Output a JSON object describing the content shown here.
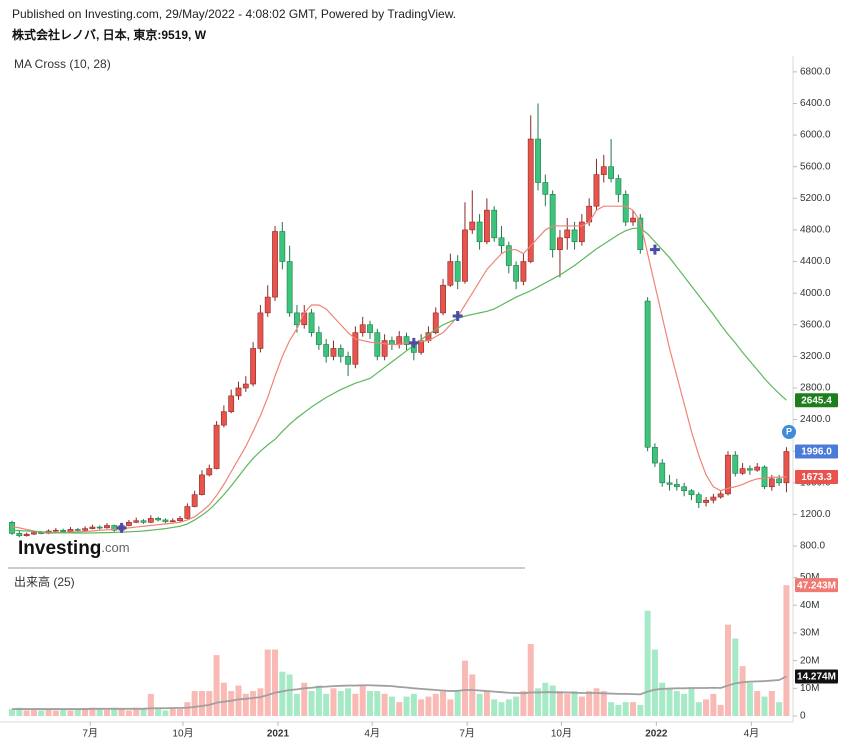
{
  "header": {
    "published": "Published on Investing.com, 29/May/2022 - 4:08:02 GMT, Powered by TradingView.",
    "symbol": "株式会社レノバ, 日本, 東京:9519, W"
  },
  "logo": {
    "name": "Investing",
    "suffix": ".com"
  },
  "badge": "P",
  "chart_data": {
    "type": "candlestick",
    "indicator": "MA Cross (10, 28)",
    "up_color": "#e8544d",
    "down_color": "#3cc47c",
    "xlim": [
      -0.55,
      106.9
    ],
    "xticks": [
      {
        "value": 10.7,
        "label": "7月"
      },
      {
        "value": 23.4,
        "label": "10月"
      },
      {
        "value": 36.4,
        "label": "2021"
      },
      {
        "value": 49.3,
        "label": "4月"
      },
      {
        "value": 62.3,
        "label": "7月"
      },
      {
        "value": 75.2,
        "label": "10月"
      },
      {
        "value": 88.2,
        "label": "2022"
      },
      {
        "value": 101.2,
        "label": "4月"
      }
    ],
    "ylim": [
      560,
      6950
    ],
    "yticks": [
      {
        "value": 800,
        "label": "800.0"
      },
      {
        "value": 1200,
        "label": "1200.0"
      },
      {
        "value": 1600,
        "label": "1600.0"
      },
      {
        "value": 2000,
        "label": "2000.0"
      },
      {
        "value": 2400,
        "label": "2400.0"
      },
      {
        "value": 2800,
        "label": "2800.0"
      },
      {
        "value": 3200,
        "label": "3200.0"
      },
      {
        "value": 3600,
        "label": "3600.0"
      },
      {
        "value": 4000,
        "label": "4000.0"
      },
      {
        "value": 4400,
        "label": "4400.0"
      },
      {
        "value": 4800,
        "label": "4800.0"
      },
      {
        "value": 5200,
        "label": "5200.0"
      },
      {
        "value": 5600,
        "label": "5600.0"
      },
      {
        "value": 6000,
        "label": "6000.0"
      },
      {
        "value": 6400,
        "label": "6400.0"
      },
      {
        "value": 6800,
        "label": "6800.0"
      }
    ],
    "ohlc": [
      [
        1100,
        1120,
        940,
        960
      ],
      [
        960,
        990,
        910,
        930
      ],
      [
        930,
        970,
        920,
        950
      ],
      [
        950,
        990,
        940,
        970
      ],
      [
        970,
        990,
        950,
        960
      ],
      [
        960,
        1010,
        950,
        990
      ],
      [
        990,
        1030,
        980,
        1000
      ],
      [
        1000,
        1020,
        960,
        980
      ],
      [
        980,
        1040,
        970,
        1010
      ],
      [
        1010,
        1030,
        980,
        1000
      ],
      [
        1000,
        1050,
        990,
        1020
      ],
      [
        1020,
        1070,
        1010,
        1040
      ],
      [
        1040,
        1060,
        1010,
        1030
      ],
      [
        1030,
        1090,
        1020,
        1060
      ],
      [
        1060,
        1070,
        980,
        1000
      ],
      [
        1000,
        1080,
        990,
        1060
      ],
      [
        1060,
        1130,
        1050,
        1100
      ],
      [
        1100,
        1160,
        1090,
        1120
      ],
      [
        1120,
        1140,
        1080,
        1100
      ],
      [
        1100,
        1190,
        1090,
        1150
      ],
      [
        1150,
        1170,
        1110,
        1130
      ],
      [
        1130,
        1150,
        1090,
        1110
      ],
      [
        1110,
        1150,
        1100,
        1120
      ],
      [
        1120,
        1180,
        1110,
        1150
      ],
      [
        1150,
        1340,
        1140,
        1300
      ],
      [
        1300,
        1500,
        1290,
        1450
      ],
      [
        1450,
        1760,
        1440,
        1700
      ],
      [
        1700,
        1830,
        1680,
        1780
      ],
      [
        1780,
        2380,
        1770,
        2330
      ],
      [
        2330,
        2580,
        2300,
        2500
      ],
      [
        2500,
        2780,
        2480,
        2700
      ],
      [
        2700,
        2880,
        2650,
        2800
      ],
      [
        2800,
        2950,
        2750,
        2850
      ],
      [
        2850,
        3380,
        2820,
        3300
      ],
      [
        3300,
        3850,
        3250,
        3750
      ],
      [
        3750,
        4100,
        3700,
        3950
      ],
      [
        3950,
        4850,
        3900,
        4780
      ],
      [
        4780,
        4900,
        4300,
        4400
      ],
      [
        4400,
        4600,
        3700,
        3750
      ],
      [
        3750,
        3850,
        3500,
        3600
      ],
      [
        3600,
        3850,
        3550,
        3750
      ],
      [
        3750,
        3800,
        3450,
        3500
      ],
      [
        3500,
        3580,
        3280,
        3350
      ],
      [
        3350,
        3420,
        3120,
        3200
      ],
      [
        3200,
        3400,
        3150,
        3300
      ],
      [
        3300,
        3350,
        3120,
        3200
      ],
      [
        3200,
        3260,
        2950,
        3100
      ],
      [
        3100,
        3580,
        3050,
        3500
      ],
      [
        3500,
        3700,
        3450,
        3600
      ],
      [
        3600,
        3650,
        3420,
        3500
      ],
      [
        3500,
        3550,
        3150,
        3200
      ],
      [
        3200,
        3480,
        3150,
        3400
      ],
      [
        3400,
        3450,
        3280,
        3350
      ],
      [
        3350,
        3520,
        3300,
        3450
      ],
      [
        3450,
        3500,
        3280,
        3350
      ],
      [
        3350,
        3420,
        3150,
        3250
      ],
      [
        3250,
        3480,
        3220,
        3400
      ],
      [
        3400,
        3580,
        3370,
        3500
      ],
      [
        3500,
        3820,
        3480,
        3750
      ],
      [
        3750,
        4180,
        3720,
        4100
      ],
      [
        4100,
        4500,
        4080,
        4400
      ],
      [
        4400,
        4480,
        4050,
        4150
      ],
      [
        4150,
        5150,
        4120,
        4800
      ],
      [
        4800,
        5300,
        4750,
        4900
      ],
      [
        4900,
        5000,
        4550,
        4650
      ],
      [
        4650,
        5200,
        4620,
        5050
      ],
      [
        5050,
        5100,
        4650,
        4700
      ],
      [
        4700,
        4850,
        4500,
        4600
      ],
      [
        4600,
        4650,
        4250,
        4350
      ],
      [
        4350,
        4400,
        4050,
        4150
      ],
      [
        4150,
        4500,
        4100,
        4400
      ],
      [
        4400,
        6250,
        4380,
        5950
      ],
      [
        5950,
        6400,
        5300,
        5400
      ],
      [
        5400,
        5500,
        5100,
        5250
      ],
      [
        5250,
        5300,
        4450,
        4550
      ],
      [
        4550,
        4800,
        4200,
        4700
      ],
      [
        4700,
        4950,
        4550,
        4800
      ],
      [
        4800,
        4900,
        4550,
        4650
      ],
      [
        4650,
        5000,
        4600,
        4900
      ],
      [
        4900,
        5200,
        4850,
        5100
      ],
      [
        5100,
        5700,
        5050,
        5500
      ],
      [
        5500,
        5750,
        5400,
        5600
      ],
      [
        5600,
        5950,
        5400,
        5450
      ],
      [
        5450,
        5500,
        5150,
        5250
      ],
      [
        5250,
        5300,
        4850,
        4900
      ],
      [
        4900,
        5050,
        4850,
        4950
      ],
      [
        4950,
        5000,
        4500,
        4550
      ],
      [
        3900,
        3950,
        2000,
        2050
      ],
      [
        2050,
        2100,
        1800,
        1850
      ],
      [
        1850,
        1900,
        1550,
        1600
      ],
      [
        1600,
        1700,
        1500,
        1580
      ],
      [
        1580,
        1650,
        1500,
        1550
      ],
      [
        1550,
        1600,
        1430,
        1500
      ],
      [
        1500,
        1520,
        1380,
        1450
      ],
      [
        1450,
        1480,
        1280,
        1350
      ],
      [
        1350,
        1420,
        1300,
        1380
      ],
      [
        1380,
        1460,
        1340,
        1420
      ],
      [
        1420,
        1500,
        1400,
        1460
      ],
      [
        1460,
        2000,
        1440,
        1950
      ],
      [
        1950,
        2000,
        1680,
        1720
      ],
      [
        1720,
        1850,
        1700,
        1780
      ],
      [
        1780,
        1820,
        1700,
        1760
      ],
      [
        1760,
        1850,
        1740,
        1800
      ],
      [
        1800,
        1820,
        1520,
        1550
      ],
      [
        1550,
        1700,
        1500,
        1650
      ],
      [
        1650,
        1700,
        1560,
        1600
      ],
      [
        1600,
        2050,
        1480,
        1996
      ]
    ],
    "ma_fast": {
      "color": "#f08378",
      "values": [
        1050,
        1030,
        1010,
        990,
        975,
        965,
        965,
        970,
        975,
        980,
        985,
        990,
        1000,
        1005,
        1010,
        1020,
        1030,
        1040,
        1050,
        1060,
        1070,
        1080,
        1090,
        1100,
        1130,
        1170,
        1240,
        1320,
        1440,
        1580,
        1740,
        1900,
        2060,
        2250,
        2450,
        2680,
        2950,
        3200,
        3400,
        3550,
        3750,
        3850,
        3850,
        3800,
        3700,
        3600,
        3500,
        3420,
        3400,
        3380,
        3370,
        3360,
        3350,
        3350,
        3370,
        3380,
        3390,
        3400,
        3450,
        3500,
        3600,
        3700,
        3850,
        4000,
        4150,
        4300,
        4400,
        4500,
        4550,
        4550,
        4500,
        4600,
        4700,
        4800,
        4850,
        4850,
        4850,
        4850,
        4850,
        4900,
        5050,
        5100,
        5100,
        5100,
        5100,
        5050,
        4900,
        4500,
        4100,
        3700,
        3300,
        2950,
        2600,
        2250,
        1950,
        1700,
        1550,
        1500,
        1530,
        1550,
        1580,
        1620,
        1650,
        1660,
        1670,
        1670,
        1673.3
      ]
    },
    "ma_slow": {
      "color": "#5cb85c",
      "values": [
        1000,
        995,
        990,
        985,
        980,
        975,
        970,
        968,
        966,
        965,
        965,
        966,
        968,
        970,
        972,
        975,
        980,
        985,
        990,
        1000,
        1010,
        1020,
        1035,
        1050,
        1080,
        1130,
        1190,
        1260,
        1350,
        1450,
        1560,
        1680,
        1800,
        1910,
        2000,
        2080,
        2150,
        2250,
        2340,
        2420,
        2490,
        2560,
        2620,
        2680,
        2730,
        2780,
        2820,
        2860,
        2890,
        2920,
        2990,
        3060,
        3130,
        3200,
        3270,
        3340,
        3410,
        3480,
        3540,
        3600,
        3640,
        3680,
        3710,
        3730,
        3750,
        3770,
        3800,
        3850,
        3900,
        3950,
        3990,
        4030,
        4080,
        4130,
        4180,
        4230,
        4290,
        4350,
        4420,
        4490,
        4560,
        4620,
        4680,
        4740,
        4790,
        4820,
        4820,
        4750,
        4650,
        4550,
        4450,
        4330,
        4210,
        4090,
        3970,
        3850,
        3730,
        3600,
        3480,
        3370,
        3250,
        3140,
        3030,
        2920,
        2820,
        2730,
        2645.4
      ]
    },
    "signals": [
      {
        "index": 15,
        "price": 1030
      },
      {
        "index": 55,
        "price": 3370
      },
      {
        "index": 61,
        "price": 3710
      },
      {
        "index": 88,
        "price": 4550
      }
    ],
    "signal_color": "#4b4ba8",
    "price_labels": [
      {
        "value": 2645.4,
        "label": "2645.4",
        "color": "#1e7e1e"
      },
      {
        "value": 1996.0,
        "label": "1996.0",
        "color": "#4a7bd8"
      },
      {
        "value": 1673.3,
        "label": "1673.3",
        "color": "#e8544d"
      }
    ],
    "volume": {
      "title": "出来高 (25)",
      "up_color": "#f9b9b4",
      "down_color": "#a6e9c6",
      "ylim": [
        0,
        52000000
      ],
      "yticks": [
        0,
        {
          "value": 10000000,
          "label": "10M"
        },
        {
          "value": 20000000,
          "label": "20M"
        },
        {
          "value": 30000000,
          "label": "30M"
        },
        {
          "value": 40000000,
          "label": "40M"
        },
        {
          "value": 50000000,
          "label": "50M"
        }
      ],
      "values": [
        2500000.0,
        3000000.0,
        2000000.0,
        2500000.0,
        2000000.0,
        2800000.0,
        2000000.0,
        2500000.0,
        2000000.0,
        2200000.0,
        2800000.0,
        3000000.0,
        2500000.0,
        2200000.0,
        3000000.0,
        2500000.0,
        2000000.0,
        3000000.0,
        2500000.0,
        8000000.0,
        2500000.0,
        2000000.0,
        3000000.0,
        2500000.0,
        5000000.0,
        9000000.0,
        9000000.0,
        9000000.0,
        22000000.0,
        12000000.0,
        9000000.0,
        11000000.0,
        8000000.0,
        9000000.0,
        10000000.0,
        24000000.0,
        24000000.0,
        16000000.0,
        15000000.0,
        8000000.0,
        12000000.0,
        9000000.0,
        11000000.0,
        8000000.0,
        10000000.0,
        9000000.0,
        10000000.0,
        8000000.0,
        11000000.0,
        9000000.0,
        9000000.0,
        8000000.0,
        7000000.0,
        5000000.0,
        7000000.0,
        8000000.0,
        6000000.0,
        7000000.0,
        8000000.0,
        9000000.0,
        6000000.0,
        9000000.0,
        20000000.0,
        15000000.0,
        8000000.0,
        9000000.0,
        6000000.0,
        5000000.0,
        6000000.0,
        7000000.0,
        9000000.0,
        26000000.0,
        10000000.0,
        12000000.0,
        11000000.0,
        9000000.0,
        8000000.0,
        9000000.0,
        7000000.0,
        9000000.0,
        10000000.0,
        9000000.0,
        5000000.0,
        4000000.0,
        5000000.0,
        5000000.0,
        4000000.0,
        38000000.0,
        24000000.0,
        12000000.0,
        10000000.0,
        9000000.0,
        8000000.0,
        10000000.0,
        5000000.0,
        6000000.0,
        8000000.0,
        4000000.0,
        33000000.0,
        28000000.0,
        18000000.0,
        12000000.0,
        9000000.0,
        7000000.0,
        9000000.0,
        5000000.0,
        47243000.0
      ],
      "ma": {
        "color": "#a0a0a0",
        "values": [
          2500000.0,
          2500000.0,
          2500000.0,
          2500000.0,
          2500000.0,
          2500000.0,
          2500000.0,
          2500000.0,
          2500000.0,
          2500000.0,
          2500000.0,
          2600000.0,
          2600000.0,
          2600000.0,
          2600000.0,
          2600000.0,
          2600000.0,
          2600000.0,
          2600000.0,
          2800000.0,
          2800000.0,
          2800000.0,
          2900000.0,
          2900000.0,
          3000000.0,
          3300000.0,
          3600000.0,
          4000000.0,
          4800000.0,
          5200000.0,
          5500000.0,
          6000000.0,
          6200000.0,
          6500000.0,
          6800000.0,
          7600000.0,
          8400000.0,
          8900000.0,
          9400000.0,
          9600000.0,
          10000000.0,
          10200000.0,
          10500000.0,
          10600000.0,
          10800000.0,
          10900000.0,
          11000000.0,
          11000000.0,
          11100000.0,
          11100000.0,
          11000000.0,
          10900000.0,
          10800000.0,
          10500000.0,
          10300000.0,
          10000000.0,
          9800000.0,
          9600000.0,
          9400000.0,
          9200000.0,
          9000000.0,
          9100000.0,
          9400000.0,
          9400000.0,
          9200000.0,
          9000000.0,
          8800000.0,
          8600000.0,
          8400000.0,
          8300000.0,
          8200000.0,
          8500000.0,
          8500000.0,
          8600000.0,
          8600000.0,
          8500000.0,
          8500000.0,
          8400000.0,
          8300000.0,
          8300000.0,
          8300000.0,
          8200000.0,
          8100000.0,
          8000000.0,
          8000000.0,
          7900000.0,
          7800000.0,
          8800000.0,
          9500000.0,
          9800000.0,
          9900000.0,
          10000000.0,
          10000000.0,
          10100000.0,
          10100000.0,
          10100000.0,
          10200000.0,
          10100000.0,
          11000000.0,
          11800000.0,
          12200000.0,
          12400000.0,
          12500000.0,
          12600000.0,
          12800000.0,
          13000000.0,
          14274000.0
        ]
      },
      "last_labels": [
        {
          "value": 47243000,
          "label": "47.243M",
          "color": "#f07a72"
        },
        {
          "value": 14274000,
          "label": "14.274M",
          "color": "#111111"
        }
      ]
    }
  }
}
